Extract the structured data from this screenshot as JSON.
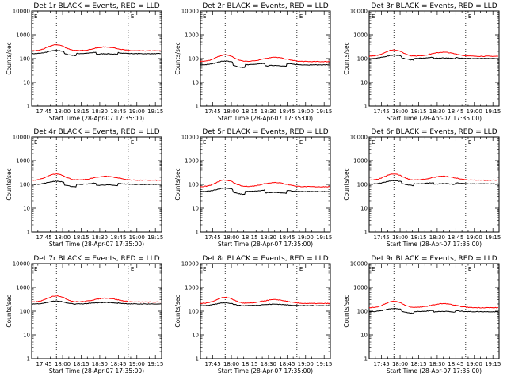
{
  "chart_data": [
    {
      "type": "line",
      "title": "Det 1r BLACK = Events, RED = LLD",
      "xlabel": "Start Time (28-Apr-07 17:35:00)",
      "ylabel": "Counts/sec",
      "series": [
        {
          "name": "Events",
          "color": "#000000",
          "base": 160,
          "amp": 0.18,
          "gapDepth": 0.18
        },
        {
          "name": "LLD",
          "color": "#ff0000",
          "base": 210,
          "amp": 0.4,
          "gapDepth": 0.02
        }
      ]
    },
    {
      "type": "line",
      "title": "Det 2r BLACK = Events, RED = LLD",
      "xlabel": "Start Time (28-Apr-07 17:35:00)",
      "ylabel": "Counts/sec",
      "series": [
        {
          "name": "Events",
          "color": "#000000",
          "base": 55,
          "amp": 0.22,
          "gapDepth": 0.25
        },
        {
          "name": "LLD",
          "color": "#ff0000",
          "base": 75,
          "amp": 0.45,
          "gapDepth": 0.02
        }
      ]
    },
    {
      "type": "line",
      "title": "Det 3r BLACK = Events, RED = LLD",
      "xlabel": "Start Time (28-Apr-07 17:35:00)",
      "ylabel": "Counts/sec",
      "series": [
        {
          "name": "Events",
          "color": "#000000",
          "base": 100,
          "amp": 0.2,
          "gapDepth": 0.14
        },
        {
          "name": "LLD",
          "color": "#ff0000",
          "base": 125,
          "amp": 0.42,
          "gapDepth": 0.02
        }
      ]
    },
    {
      "type": "line",
      "title": "Det 4r BLACK = Events, RED = LLD",
      "xlabel": "Start Time (28-Apr-07 17:35:00)",
      "ylabel": "Counts/sec",
      "series": [
        {
          "name": "Events",
          "color": "#000000",
          "base": 100,
          "amp": 0.18,
          "gapDepth": 0.22
        },
        {
          "name": "LLD",
          "color": "#ff0000",
          "base": 150,
          "amp": 0.42,
          "gapDepth": 0.02
        }
      ]
    },
    {
      "type": "line",
      "title": "Det 5r BLACK = Events, RED = LLD",
      "xlabel": "Start Time (28-Apr-07 17:35:00)",
      "ylabel": "Counts/sec",
      "series": [
        {
          "name": "Events",
          "color": "#000000",
          "base": 50,
          "amp": 0.2,
          "gapDepth": 0.25
        },
        {
          "name": "LLD",
          "color": "#ff0000",
          "base": 80,
          "amp": 0.45,
          "gapDepth": 0.02
        }
      ]
    },
    {
      "type": "line",
      "title": "Det 6r BLACK = Events, RED = LLD",
      "xlabel": "Start Time (28-Apr-07 17:35:00)",
      "ylabel": "Counts/sec",
      "series": [
        {
          "name": "Events",
          "color": "#000000",
          "base": 105,
          "amp": 0.18,
          "gapDepth": 0.16
        },
        {
          "name": "LLD",
          "color": "#ff0000",
          "base": 150,
          "amp": 0.42,
          "gapDepth": 0.02
        }
      ]
    },
    {
      "type": "line",
      "title": "Det 7r BLACK = Events, RED = LLD",
      "xlabel": "Start Time (28-Apr-07 17:35:00)",
      "ylabel": "Counts/sec",
      "series": [
        {
          "name": "Events",
          "color": "#000000",
          "base": 200,
          "amp": 0.16,
          "gapDepth": 0.03
        },
        {
          "name": "LLD",
          "color": "#ff0000",
          "base": 240,
          "amp": 0.42,
          "gapDepth": 0.02
        }
      ]
    },
    {
      "type": "line",
      "title": "Det 8r BLACK = Events, RED = LLD",
      "xlabel": "Start Time (28-Apr-07 17:35:00)",
      "ylabel": "Counts/sec",
      "series": [
        {
          "name": "Events",
          "color": "#000000",
          "base": 170,
          "amp": 0.16,
          "gapDepth": 0.03
        },
        {
          "name": "LLD",
          "color": "#ff0000",
          "base": 210,
          "amp": 0.4,
          "gapDepth": 0.02
        }
      ]
    },
    {
      "type": "line",
      "title": "Det 9r BLACK = Events, RED = LLD",
      "xlabel": "Start Time (28-Apr-07 17:35:00)",
      "ylabel": "Counts/sec",
      "series": [
        {
          "name": "Events",
          "color": "#000000",
          "base": 95,
          "amp": 0.18,
          "gapDepth": 0.15
        },
        {
          "name": "LLD",
          "color": "#ff0000",
          "base": 140,
          "amp": 0.42,
          "gapDepth": 0.02
        }
      ]
    }
  ],
  "shared_axes": {
    "ylim": [
      1,
      10000
    ],
    "yscale": "log",
    "yticks": [
      1,
      10,
      100,
      1000,
      10000
    ],
    "ytick_labels": [
      "1",
      "10",
      "100",
      "1000",
      "10000"
    ],
    "xlim_minutes": [
      0,
      105
    ],
    "xticks_minutes": [
      10,
      25,
      40,
      55,
      70,
      85,
      100
    ],
    "xtick_labels": [
      "17:45",
      "18:00",
      "18:15",
      "18:30",
      "18:45",
      "19:00",
      "19:15"
    ],
    "vlines_minutes": [
      20,
      78
    ],
    "hump_centers_minutes": [
      20,
      60
    ],
    "data_gaps_minutes": [
      [
        26,
        36
      ],
      [
        52,
        70
      ]
    ],
    "corner_marker": "E"
  }
}
